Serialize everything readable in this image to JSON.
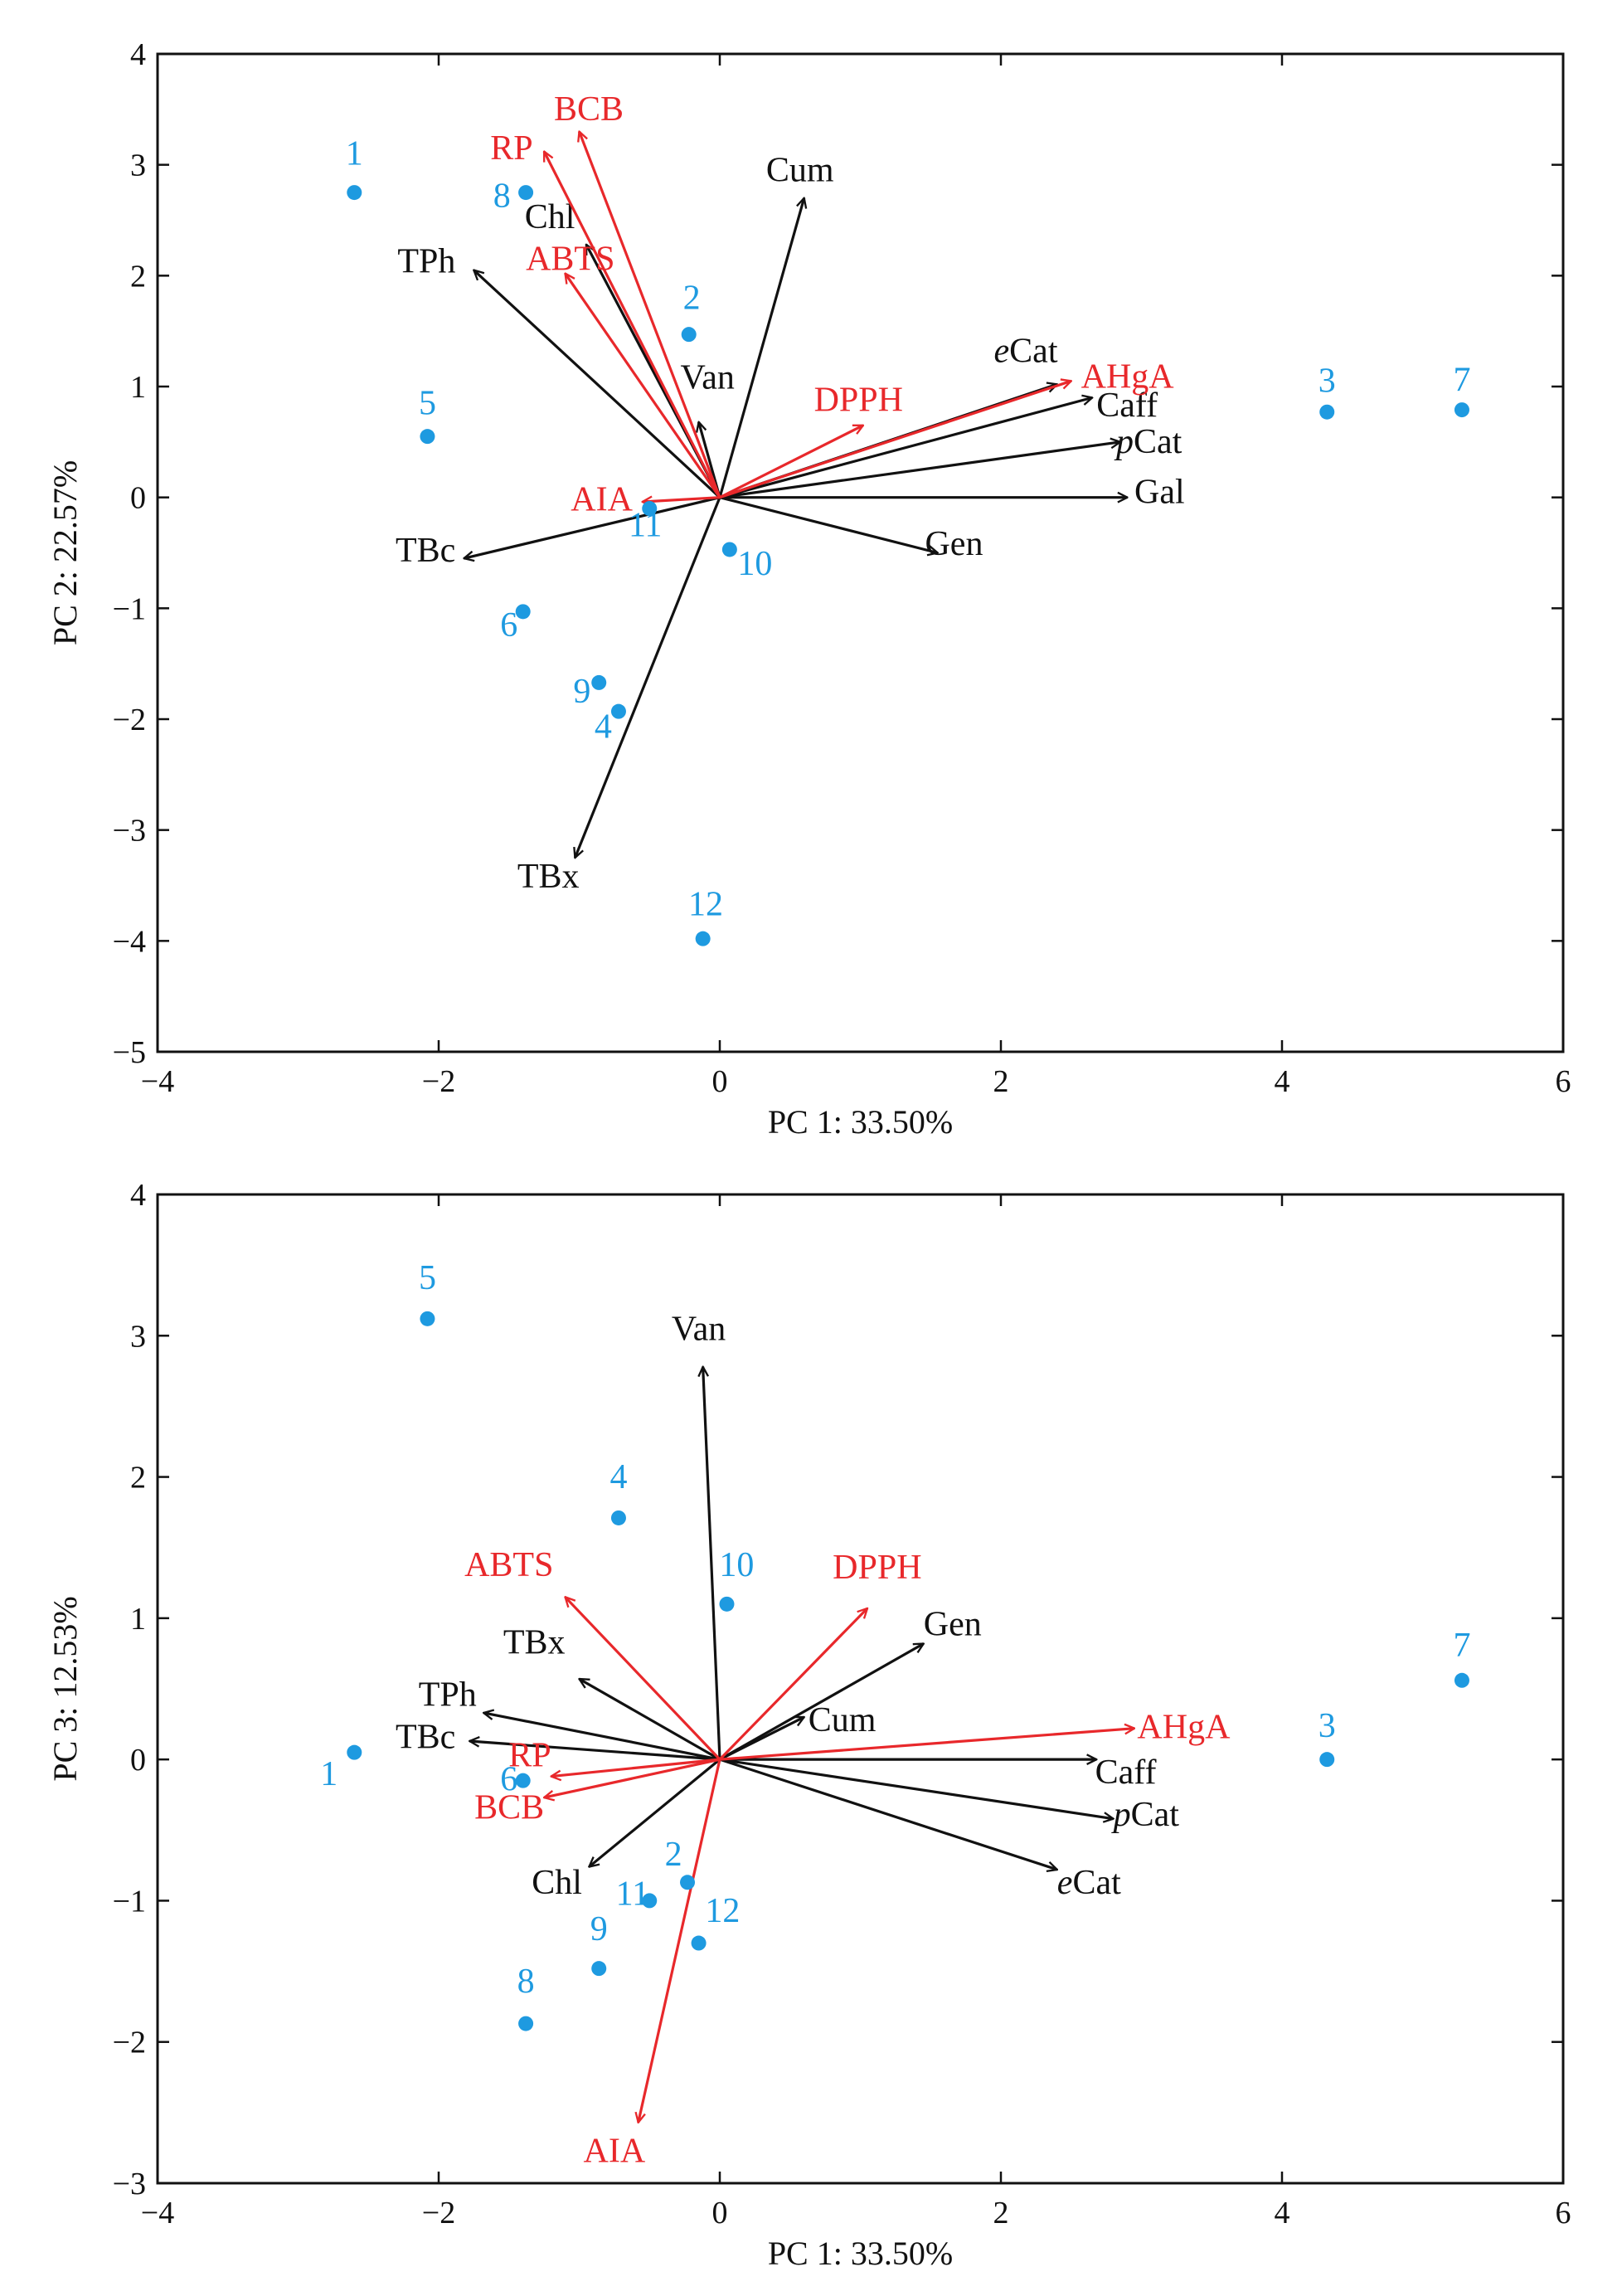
{
  "colors": {
    "black_vector": "#111111",
    "red_vector": "#e8282b",
    "observation": "#1e9ae0",
    "frame": "#111111"
  },
  "chart_data": [
    {
      "type": "scatter",
      "title": "",
      "xlabel": "PC 1: 33.50%",
      "ylabel": "PC 2: 22.57%",
      "xlim": [
        -4,
        6
      ],
      "ylim": [
        -5,
        4
      ],
      "xticks": [
        -4,
        -2,
        0,
        2,
        4,
        6
      ],
      "yticks": [
        4,
        3,
        2,
        1,
        0,
        -1,
        -2,
        -3,
        -4,
        -5
      ],
      "xtick_labels": [
        "−4",
        "−2",
        "0",
        "2",
        "4",
        "6"
      ],
      "ytick_labels": [
        "4",
        "3",
        "2",
        "1",
        "0",
        "−1",
        "−2",
        "−3",
        "−4",
        "−5"
      ],
      "vectors": [
        {
          "name": "TPh",
          "x": -1.75,
          "y": 2.05,
          "group": "black",
          "lx": -1.88,
          "ly": 2.03,
          "anchor": "end"
        },
        {
          "name": "Chl",
          "x": -0.95,
          "y": 2.28,
          "group": "black",
          "lx": -1.03,
          "ly": 2.43,
          "anchor": "end"
        },
        {
          "name": "Van",
          "x": -0.15,
          "y": 0.68,
          "group": "black",
          "lx": -0.28,
          "ly": 0.98,
          "anchor": "start"
        },
        {
          "name": "Cum",
          "x": 0.6,
          "y": 2.7,
          "group": "black",
          "lx": 0.33,
          "ly": 2.85,
          "anchor": "start"
        },
        {
          "name": "eCat",
          "x": 2.4,
          "y": 1.02,
          "group": "black",
          "lx": 1.95,
          "ly": 1.22,
          "anchor": "start",
          "italic_prefix": 1
        },
        {
          "name": "Caff",
          "x": 2.65,
          "y": 0.9,
          "group": "black",
          "lx": 2.68,
          "ly": 0.73,
          "anchor": "start"
        },
        {
          "name": "pCat",
          "x": 2.85,
          "y": 0.5,
          "group": "black",
          "lx": 2.82,
          "ly": 0.4,
          "anchor": "start",
          "italic_prefix": 1
        },
        {
          "name": "Gal",
          "x": 2.9,
          "y": 0.0,
          "group": "black",
          "lx": 2.95,
          "ly": -0.05,
          "anchor": "start"
        },
        {
          "name": "Gen",
          "x": 1.55,
          "y": -0.5,
          "group": "black",
          "lx": 1.46,
          "ly": -0.52,
          "anchor": "start"
        },
        {
          "name": "TBc",
          "x": -1.82,
          "y": -0.55,
          "group": "black",
          "lx": -1.88,
          "ly": -0.58,
          "anchor": "end"
        },
        {
          "name": "TBx",
          "x": -1.03,
          "y": -3.25,
          "group": "black",
          "lx": -1.0,
          "ly": -3.52,
          "anchor": "end"
        },
        {
          "name": "RP",
          "x": -1.25,
          "y": 3.12,
          "group": "red",
          "lx": -1.33,
          "ly": 3.05,
          "anchor": "end"
        },
        {
          "name": "BCB",
          "x": -1.0,
          "y": 3.3,
          "group": "red",
          "lx": -1.18,
          "ly": 3.4,
          "anchor": "start"
        },
        {
          "name": "ABTS",
          "x": -1.1,
          "y": 2.02,
          "group": "red",
          "lx": -1.38,
          "ly": 2.05,
          "anchor": "start"
        },
        {
          "name": "DPPH",
          "x": 1.02,
          "y": 0.65,
          "group": "red",
          "lx": 0.67,
          "ly": 0.78,
          "anchor": "start"
        },
        {
          "name": "AHgA",
          "x": 2.5,
          "y": 1.05,
          "group": "red",
          "lx": 2.57,
          "ly": 0.99,
          "anchor": "start"
        },
        {
          "name": "AIA",
          "x": -0.55,
          "y": -0.04,
          "group": "red",
          "lx": -0.62,
          "ly": -0.12,
          "anchor": "end"
        }
      ],
      "observations": [
        {
          "label": "1",
          "x": -2.6,
          "y": 2.75,
          "lx": -2.6,
          "ly": 3.0
        },
        {
          "label": "2",
          "x": -0.22,
          "y": 1.47,
          "lx": -0.2,
          "ly": 1.7
        },
        {
          "label": "3",
          "x": 4.32,
          "y": 0.77,
          "lx": 4.32,
          "ly": 0.95
        },
        {
          "label": "4",
          "x": -0.72,
          "y": -1.93,
          "lx": -0.83,
          "ly": -2.17
        },
        {
          "label": "5",
          "x": -2.08,
          "y": 0.55,
          "lx": -2.08,
          "ly": 0.75
        },
        {
          "label": "6",
          "x": -1.4,
          "y": -1.03,
          "lx": -1.5,
          "ly": -1.25
        },
        {
          "label": "7",
          "x": 5.28,
          "y": 0.79,
          "lx": 5.28,
          "ly": 0.96
        },
        {
          "label": "8",
          "x": -1.38,
          "y": 2.75,
          "lx": -1.55,
          "ly": 2.62
        },
        {
          "label": "9",
          "x": -0.86,
          "y": -1.67,
          "lx": -0.98,
          "ly": -1.85
        },
        {
          "label": "10",
          "x": 0.07,
          "y": -0.47,
          "lx": 0.25,
          "ly": -0.7
        },
        {
          "label": "11",
          "x": -0.5,
          "y": -0.1,
          "lx": -0.53,
          "ly": -0.35
        },
        {
          "label": "12",
          "x": -0.12,
          "y": -3.98,
          "lx": -0.1,
          "ly": -3.77
        }
      ]
    },
    {
      "type": "scatter",
      "title": "",
      "xlabel": "PC 1: 33.50%",
      "ylabel": "PC 3: 12.53%",
      "xlim": [
        -4,
        6
      ],
      "ylim": [
        -3,
        4
      ],
      "xticks": [
        -4,
        -2,
        0,
        2,
        4,
        6
      ],
      "yticks": [
        4,
        3,
        2,
        1,
        0,
        -1,
        -2,
        -3
      ],
      "xtick_labels": [
        "−4",
        "−2",
        "0",
        "2",
        "4",
        "6"
      ],
      "ytick_labels": [
        "4",
        "3",
        "2",
        "1",
        "0",
        "−1",
        "−2",
        "−3"
      ],
      "vectors": [
        {
          "name": "Van",
          "x": -0.12,
          "y": 2.78,
          "group": "black",
          "lx": -0.15,
          "ly": 2.97,
          "anchor": "middle"
        },
        {
          "name": "TBx",
          "x": -1.0,
          "y": 0.57,
          "group": "black",
          "lx": -1.1,
          "ly": 0.75,
          "anchor": "end"
        },
        {
          "name": "TPh",
          "x": -1.68,
          "y": 0.33,
          "group": "black",
          "lx": -1.73,
          "ly": 0.38,
          "anchor": "end"
        },
        {
          "name": "TBc",
          "x": -1.78,
          "y": 0.13,
          "group": "black",
          "lx": -1.88,
          "ly": 0.08,
          "anchor": "end"
        },
        {
          "name": "Chl",
          "x": -0.93,
          "y": -0.76,
          "group": "black",
          "lx": -0.98,
          "ly": -0.95,
          "anchor": "end"
        },
        {
          "name": "Cum",
          "x": 0.6,
          "y": 0.3,
          "group": "black",
          "lx": 0.63,
          "ly": 0.2,
          "anchor": "start"
        },
        {
          "name": "Gen",
          "x": 1.45,
          "y": 0.82,
          "group": "black",
          "lx": 1.45,
          "ly": 0.88,
          "anchor": "start"
        },
        {
          "name": "Caff",
          "x": 2.68,
          "y": 0.0,
          "group": "black",
          "lx": 2.67,
          "ly": -0.17,
          "anchor": "start"
        },
        {
          "name": "pCat",
          "x": 2.8,
          "y": -0.42,
          "group": "black",
          "lx": 2.8,
          "ly": -0.47,
          "anchor": "start",
          "italic_prefix": 1
        },
        {
          "name": "eCat",
          "x": 2.4,
          "y": -0.78,
          "group": "black",
          "lx": 2.4,
          "ly": -0.95,
          "anchor": "start",
          "italic_prefix": 1
        },
        {
          "name": "ABTS",
          "x": -1.1,
          "y": 1.15,
          "group": "red",
          "lx": -1.5,
          "ly": 1.3,
          "anchor": "middle"
        },
        {
          "name": "DPPH",
          "x": 1.05,
          "y": 1.07,
          "group": "red",
          "lx": 1.12,
          "ly": 1.28,
          "anchor": "middle"
        },
        {
          "name": "AHgA",
          "x": 2.95,
          "y": 0.22,
          "group": "red",
          "lx": 2.97,
          "ly": 0.15,
          "anchor": "start"
        },
        {
          "name": "RP",
          "x": -1.2,
          "y": -0.12,
          "group": "red",
          "lx": -1.2,
          "ly": -0.05,
          "anchor": "end"
        },
        {
          "name": "BCB",
          "x": -1.25,
          "y": -0.27,
          "group": "red",
          "lx": -1.25,
          "ly": -0.42,
          "anchor": "end"
        },
        {
          "name": "AIA",
          "x": -0.58,
          "y": -2.57,
          "group": "red",
          "lx": -0.75,
          "ly": -2.85,
          "anchor": "middle"
        }
      ],
      "observations": [
        {
          "label": "1",
          "x": -2.6,
          "y": 0.05,
          "lx": -2.78,
          "ly": -0.18
        },
        {
          "label": "2",
          "x": -0.23,
          "y": -0.87,
          "lx": -0.33,
          "ly": -0.75
        },
        {
          "label": "3",
          "x": 4.32,
          "y": 0.0,
          "lx": 4.32,
          "ly": 0.16
        },
        {
          "label": "4",
          "x": -0.72,
          "y": 1.71,
          "lx": -0.72,
          "ly": 1.92
        },
        {
          "label": "5",
          "x": -2.08,
          "y": 3.12,
          "lx": -2.08,
          "ly": 3.33
        },
        {
          "label": "6",
          "x": -1.4,
          "y": -0.15,
          "lx": -1.5,
          "ly": -0.22
        },
        {
          "label": "7",
          "x": 5.28,
          "y": 0.56,
          "lx": 5.28,
          "ly": 0.73
        },
        {
          "label": "8",
          "x": -1.38,
          "y": -1.87,
          "lx": -1.38,
          "ly": -1.65
        },
        {
          "label": "9",
          "x": -0.86,
          "y": -1.48,
          "lx": -0.86,
          "ly": -1.28
        },
        {
          "label": "10",
          "x": 0.05,
          "y": 1.1,
          "lx": 0.12,
          "ly": 1.3
        },
        {
          "label": "11",
          "x": -0.5,
          "y": -1.0,
          "lx": -0.62,
          "ly": -1.03
        },
        {
          "label": "12",
          "x": -0.15,
          "y": -1.3,
          "lx": 0.02,
          "ly": -1.15
        }
      ]
    }
  ]
}
